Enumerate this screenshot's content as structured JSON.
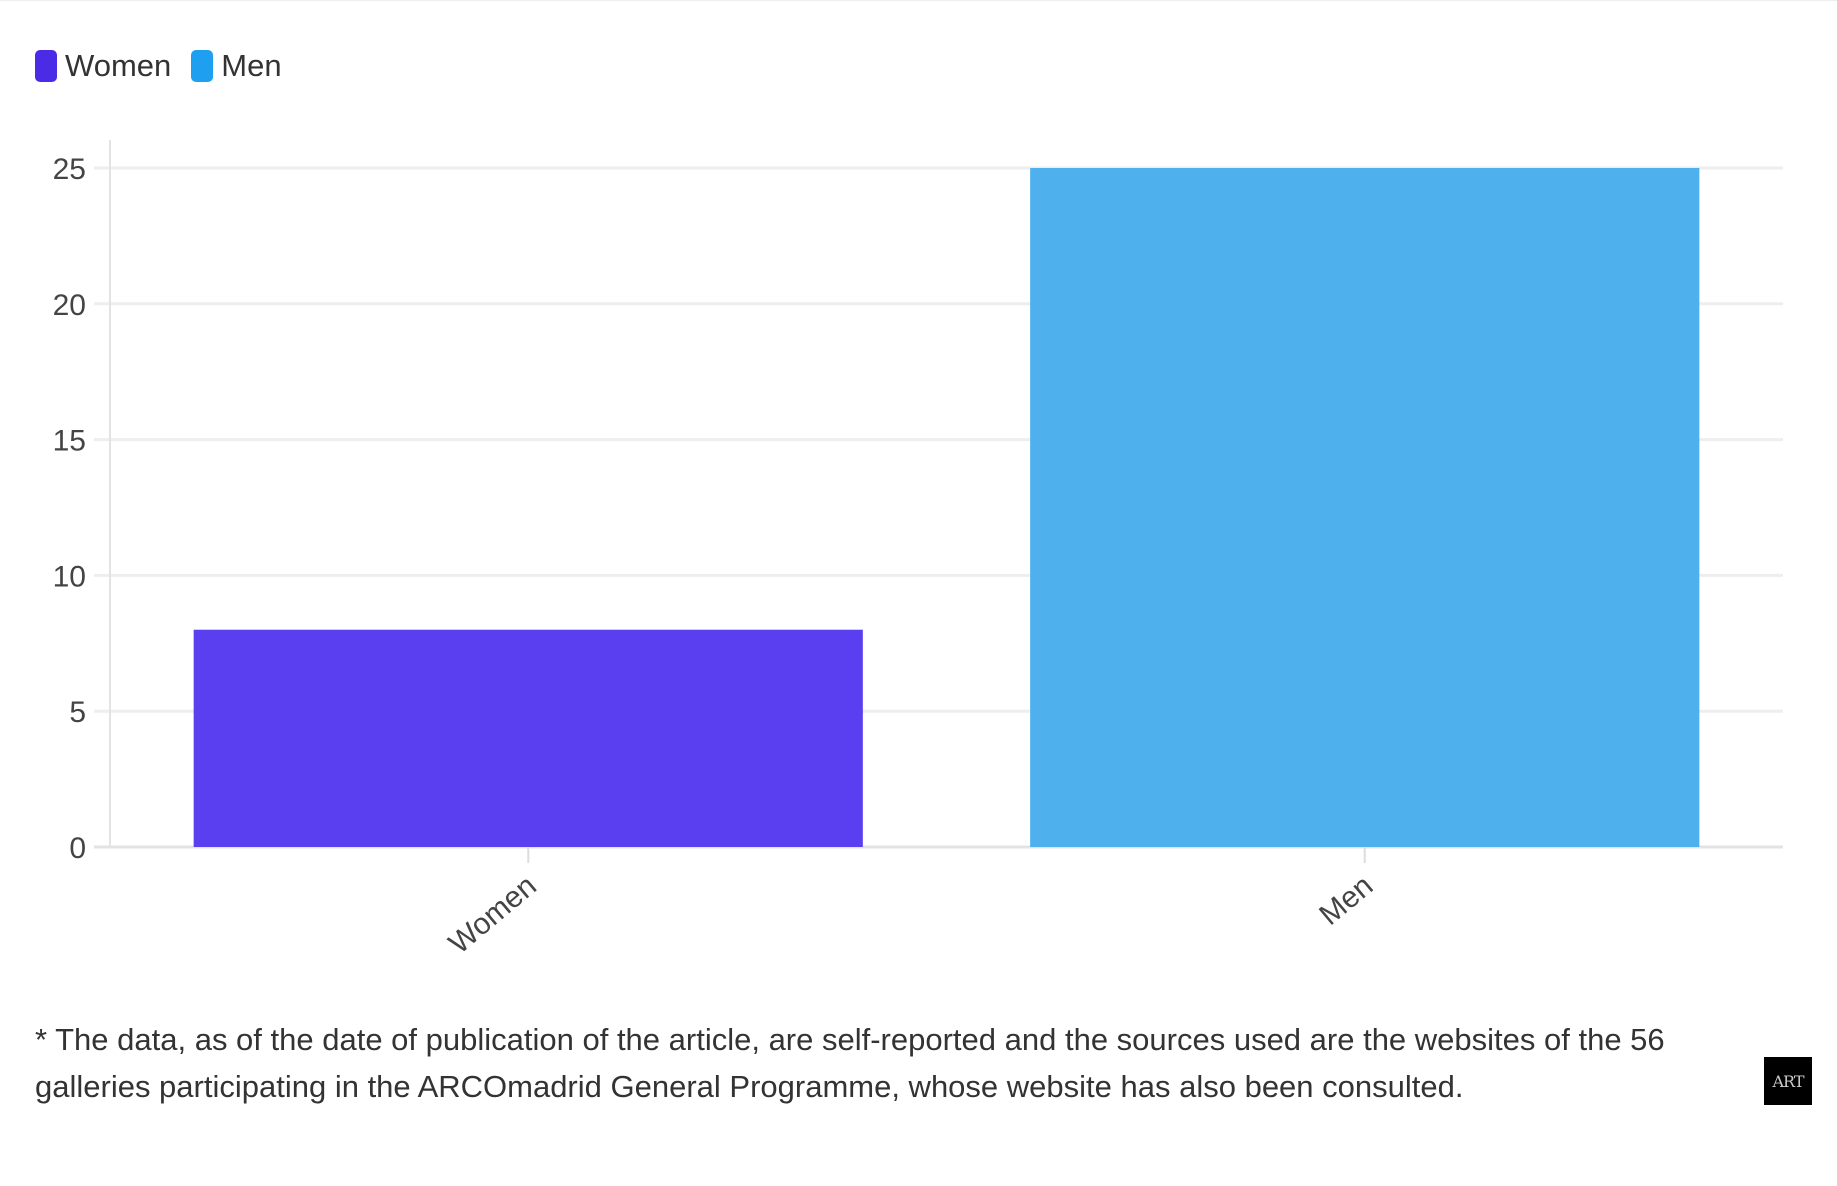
{
  "chart_data": {
    "type": "bar",
    "categories": [
      "Women",
      "Men"
    ],
    "values": [
      8,
      25
    ],
    "colors": [
      "#5a3ff0",
      "#4fb0ee"
    ],
    "legend": [
      {
        "label": "Women",
        "color": "#4b2be6"
      },
      {
        "label": "Men",
        "color": "#1e9ff0"
      }
    ],
    "legend_position": "top-left",
    "ylim": [
      0,
      25
    ],
    "yticks": [
      0,
      5,
      10,
      15,
      20,
      25
    ],
    "grid": true
  },
  "footnote": "* The data, as of the date of publication of the article, are self-reported and the sources used are the websites of the 56 galleries participating in the ARCOmadrid General Programme, whose website has also been consulted.",
  "logo": {
    "text": "ART",
    "icon": "art-logo-icon"
  }
}
